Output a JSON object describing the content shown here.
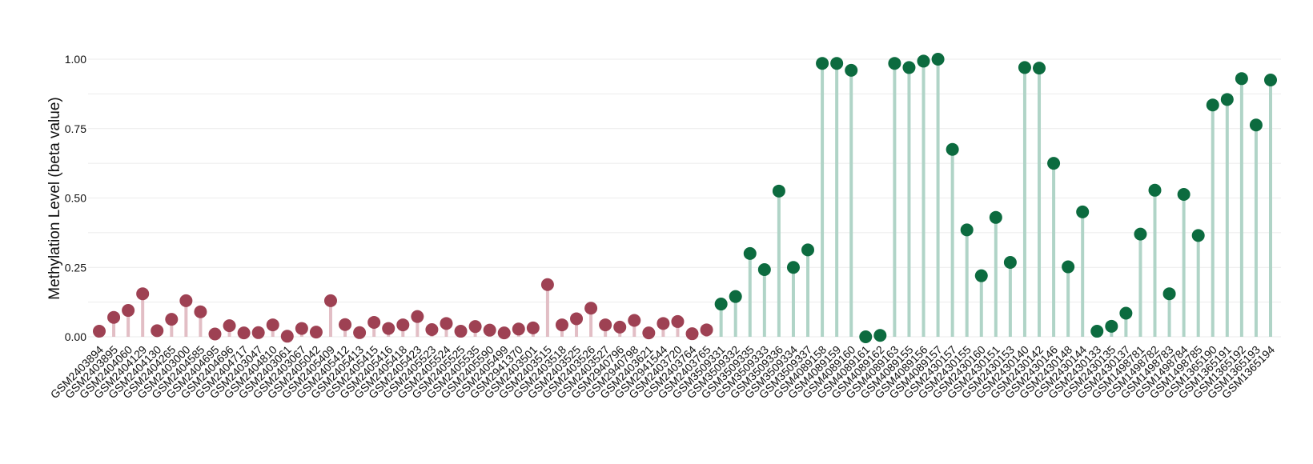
{
  "chart_data": {
    "type": "lollipop",
    "title": "",
    "xlabel": "",
    "ylabel": "Methylation Level (beta value)",
    "ylim": [
      -0.02,
      1.04
    ],
    "yticks": [
      0.0,
      0.25,
      0.5,
      0.75,
      1.0
    ],
    "ytick_labels": [
      "0.00",
      "0.25",
      "0.50",
      "0.75",
      "1.00"
    ],
    "grid": true,
    "colors": {
      "group1_point": "#9E4153",
      "group1_stem": "#E2BEC5",
      "group2_point": "#0C6B3F",
      "group2_stem": "#B0D4C7",
      "grid": "#EBEBEB"
    },
    "categories": [
      "GSM2403894",
      "GSM2403895",
      "GSM2404060",
      "GSM2404129",
      "GSM2404130",
      "GSM2404265",
      "GSM2403000",
      "GSM2404585",
      "GSM2404695",
      "GSM2404696",
      "GSM2404717",
      "GSM2403047",
      "GSM2404810",
      "GSM2403061",
      "GSM2403067",
      "GSM2405042",
      "GSM2405409",
      "GSM2405412",
      "GSM2405413",
      "GSM2405415",
      "GSM2405416",
      "GSM2405418",
      "GSM2405423",
      "GSM2405523",
      "GSM2405524",
      "GSM2405525",
      "GSM2405535",
      "GSM2405590",
      "GSM2405499",
      "GSM2941370",
      "GSM2403501",
      "GSM2403515",
      "GSM2403518",
      "GSM2403525",
      "GSM2403526",
      "GSM2403527",
      "GSM2940796",
      "GSM2940798",
      "GSM2403621",
      "GSM2941544",
      "GSM2403720",
      "GSM2403764",
      "GSM2403765",
      "GSM3509331",
      "GSM3509332",
      "GSM3509335",
      "GSM3509333",
      "GSM3509336",
      "GSM3509334",
      "GSM3509337",
      "GSM4089158",
      "GSM4089159",
      "GSM4089160",
      "GSM4089161",
      "GSM4089162",
      "GSM4089163",
      "GSM4089155",
      "GSM4089156",
      "GSM4089157",
      "GSM2430157",
      "GSM2430155",
      "GSM2430160",
      "GSM2430151",
      "GSM2430153",
      "GSM2430140",
      "GSM2430142",
      "GSM2430146",
      "GSM2430148",
      "GSM2430144",
      "GSM2430133",
      "GSM2430135",
      "GSM2430137",
      "GSM1498781",
      "GSM1498782",
      "GSM1498783",
      "GSM1498784",
      "GSM1498785",
      "GSM1365190",
      "GSM1365191",
      "GSM1365192",
      "GSM1365193",
      "GSM1365194"
    ],
    "groups": [
      1,
      1,
      1,
      1,
      1,
      1,
      1,
      1,
      1,
      1,
      1,
      1,
      1,
      1,
      1,
      1,
      1,
      1,
      1,
      1,
      1,
      1,
      1,
      1,
      1,
      1,
      1,
      1,
      1,
      1,
      1,
      1,
      1,
      1,
      1,
      1,
      1,
      1,
      1,
      1,
      1,
      1,
      1,
      2,
      2,
      2,
      2,
      2,
      2,
      2,
      2,
      2,
      2,
      2,
      2,
      2,
      2,
      2,
      2,
      2,
      2,
      2,
      2,
      2,
      2,
      2,
      2,
      2,
      2,
      2,
      2,
      2,
      2,
      2,
      2,
      2,
      2,
      2,
      2,
      2,
      2,
      2
    ],
    "values": [
      0.02,
      0.07,
      0.095,
      0.155,
      0.022,
      0.063,
      0.13,
      0.09,
      0.01,
      0.04,
      0.014,
      0.015,
      0.043,
      0.002,
      0.03,
      0.017,
      0.13,
      0.044,
      0.015,
      0.052,
      0.03,
      0.043,
      0.073,
      0.026,
      0.048,
      0.02,
      0.037,
      0.024,
      0.014,
      0.028,
      0.032,
      0.188,
      0.043,
      0.065,
      0.103,
      0.043,
      0.035,
      0.059,
      0.014,
      0.048,
      0.055,
      0.011,
      0.025,
      0.118,
      0.145,
      0.3,
      0.242,
      0.525,
      0.25,
      0.313,
      0.985,
      0.985,
      0.96,
      0.0,
      0.005,
      0.985,
      0.97,
      0.993,
      1.0,
      0.675,
      0.385,
      0.22,
      0.43,
      0.268,
      0.97,
      0.968,
      0.625,
      0.252,
      0.45,
      0.02,
      0.038,
      0.085,
      0.37,
      0.528,
      0.155,
      0.513,
      0.365,
      0.835,
      0.855,
      0.93,
      0.763,
      0.925
    ]
  }
}
